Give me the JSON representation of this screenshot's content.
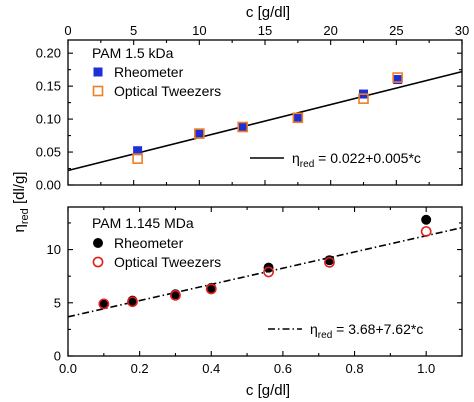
{
  "figure": {
    "top_axis_label": "c [g/dl]",
    "bottom_axis_label": "c [g/dl]",
    "y_axis_label_main": "η",
    "y_axis_label_sub": "red",
    "y_axis_label_unit": " [dl/g]"
  },
  "colors": {
    "rheometer_top": "#1f2fd6",
    "tweezers_top": "#ef7f22",
    "rheometer_bottom": "#000000",
    "tweezers_bottom": "#e0201e",
    "fit_line": "#000000"
  },
  "chart_data": [
    {
      "type": "scatter",
      "title": "PAM 1.5 kDa",
      "xlabel": "c [g/dl]",
      "xaxis_position": "top",
      "ylabel": "η_red [dl/g]",
      "xlim": [
        0,
        30
      ],
      "ylim": [
        0,
        0.22
      ],
      "x_ticks": [
        0,
        5,
        10,
        15,
        20,
        25,
        30
      ],
      "y_ticks": [
        0.0,
        0.05,
        0.1,
        0.15,
        0.2
      ],
      "x_tick_labels": [
        "0",
        "5",
        "10",
        "15",
        "20",
        "25",
        "30"
      ],
      "y_tick_labels": [
        "0.00",
        "0.05",
        "0.10",
        "0.15",
        "0.20"
      ],
      "legend_position": "top-left",
      "series": [
        {
          "name": "Rheometer",
          "marker": "filled-square",
          "color": "#1f2fd6",
          "x": [
            5.3,
            10.0,
            13.3,
            17.5,
            22.5,
            25.1
          ],
          "y": [
            0.052,
            0.078,
            0.088,
            0.103,
            0.138,
            0.16
          ]
        },
        {
          "name": "Optical Tweezers",
          "marker": "open-square",
          "color": "#ef7f22",
          "x": [
            5.3,
            10.0,
            13.3,
            17.5,
            22.5,
            25.1
          ],
          "y": [
            0.04,
            0.078,
            0.088,
            0.102,
            0.131,
            0.163
          ]
        }
      ],
      "fit": {
        "label_main": "η",
        "label_sub": "red",
        "label_rest": " = 0.022+0.005*c",
        "intercept": 0.022,
        "slope": 0.005,
        "style": "solid"
      }
    },
    {
      "type": "scatter",
      "title": "PAM 1.145 MDa",
      "xlabel": "c [g/dl]",
      "xaxis_position": "bottom",
      "ylabel": "η_red [dl/g]",
      "xlim": [
        0,
        1.1
      ],
      "ylim": [
        0,
        14
      ],
      "x_ticks": [
        0.0,
        0.2,
        0.4,
        0.6,
        0.8,
        1.0
      ],
      "y_ticks": [
        0,
        5,
        10
      ],
      "x_tick_labels": [
        "0.0",
        "0.2",
        "0.4",
        "0.6",
        "0.8",
        "1.0"
      ],
      "y_tick_labels": [
        "0",
        "5",
        "10"
      ],
      "legend_position": "top-left",
      "series": [
        {
          "name": "Rheometer",
          "marker": "filled-circle",
          "color": "#000000",
          "x": [
            0.1,
            0.18,
            0.3,
            0.4,
            0.56,
            0.73,
            1.0
          ],
          "y": [
            4.9,
            5.2,
            5.8,
            6.4,
            8.3,
            9.0,
            12.8
          ]
        },
        {
          "name": "Optical Tweezers",
          "marker": "open-circle",
          "color": "#e0201e",
          "x": [
            0.1,
            0.18,
            0.3,
            0.4,
            0.56,
            0.73,
            1.0
          ],
          "y": [
            4.9,
            5.1,
            5.7,
            6.3,
            7.9,
            8.8,
            11.7
          ]
        }
      ],
      "fit": {
        "label_main": "η",
        "label_sub": "red",
        "label_rest": " = 3.68+7.62*c",
        "intercept": 3.68,
        "slope": 7.62,
        "style": "dash-dot"
      }
    }
  ]
}
